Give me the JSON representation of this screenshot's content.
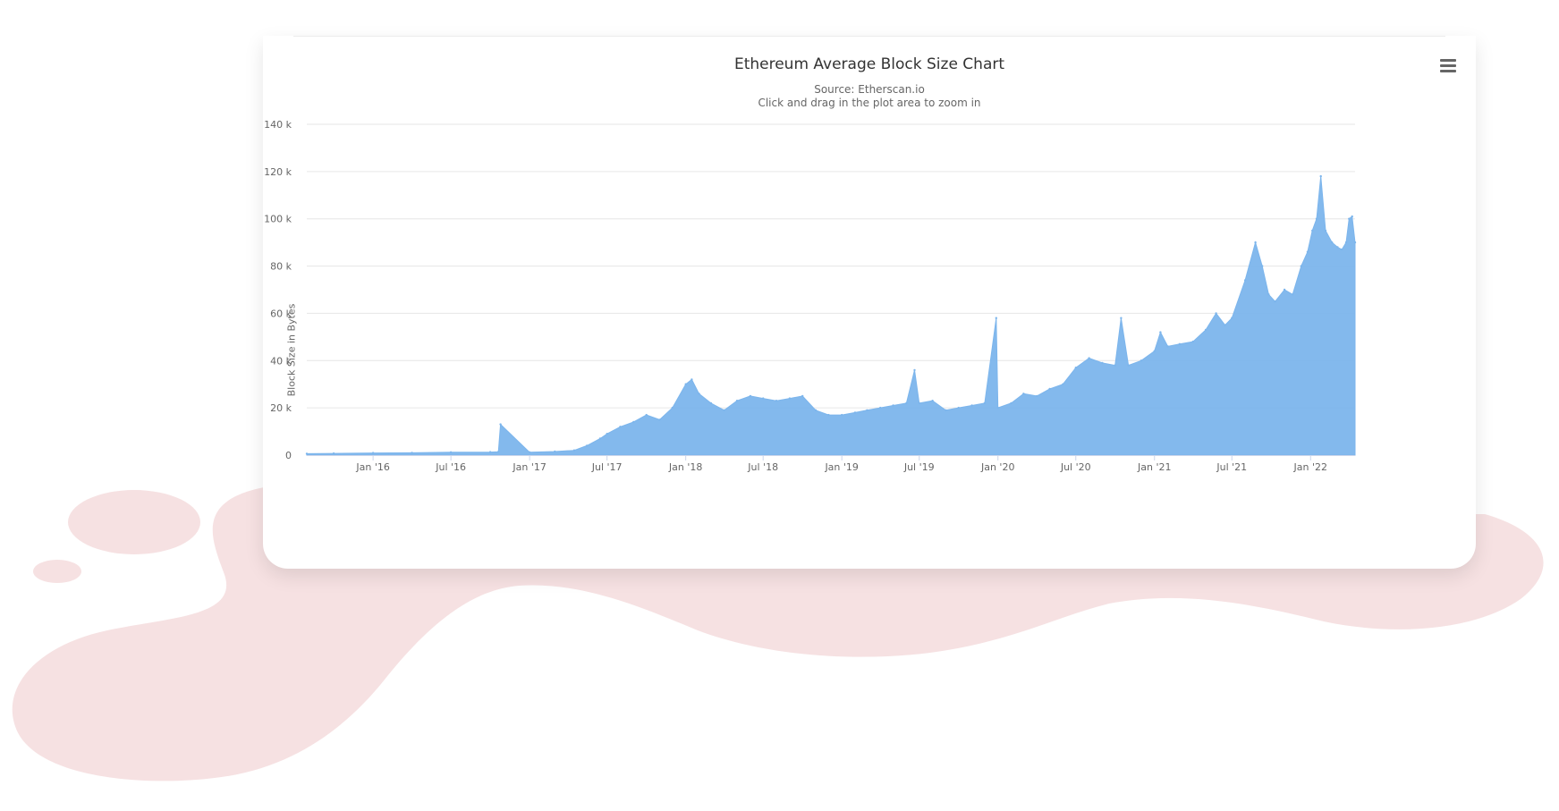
{
  "colors": {
    "background_blob": "#f6e1e2",
    "card": "#ffffff",
    "series": "#7cb5ec",
    "grid": "#e6e6e6",
    "text": "#333333",
    "muted": "#666666"
  },
  "menu": {
    "icon": "hamburger-menu-icon"
  },
  "chart_data": {
    "type": "area",
    "title": "Ethereum Average Block Size Chart",
    "subtitle": "Source: Etherscan.io",
    "subtitle2": "Click and drag in the plot area to zoom in",
    "xlabel": "",
    "ylabel": "Block Size in Bytes",
    "xlim": [
      "2015-07-30",
      "2022-04-15"
    ],
    "ylim": [
      0,
      140000
    ],
    "y_ticks": [
      0,
      20000,
      40000,
      60000,
      80000,
      100000,
      120000,
      140000
    ],
    "y_tick_labels": [
      "0",
      "20 k",
      "40 k",
      "60 k",
      "80 k",
      "100 k",
      "120 k",
      "140 k"
    ],
    "x_ticks": [
      "2016-01-01",
      "2016-07-01",
      "2017-01-01",
      "2017-07-01",
      "2018-01-01",
      "2018-07-01",
      "2019-01-01",
      "2019-07-01",
      "2020-01-01",
      "2020-07-01",
      "2021-01-01",
      "2021-07-01",
      "2022-01-01"
    ],
    "x_tick_labels": [
      "Jan '16",
      "Jul '16",
      "Jan '17",
      "Jul '17",
      "Jan '18",
      "Jul '18",
      "Jan '19",
      "Jul '19",
      "Jan '20",
      "Jul '20",
      "Jan '21",
      "Jul '21",
      "Jan '22"
    ],
    "grid": true,
    "legend": "none",
    "series": [
      {
        "x": [
          "2015-07-30",
          "2015-10-01",
          "2016-01-01",
          "2016-04-01",
          "2016-07-01",
          "2016-10-01",
          "2016-10-20",
          "2016-10-25",
          "2017-01-01",
          "2017-03-01",
          "2017-04-15",
          "2017-05-15",
          "2017-06-15",
          "2017-07-01",
          "2017-08-01",
          "2017-09-01",
          "2017-10-01",
          "2017-11-01",
          "2017-12-01",
          "2018-01-01",
          "2018-01-15",
          "2018-02-01",
          "2018-03-01",
          "2018-04-01",
          "2018-05-01",
          "2018-06-01",
          "2018-07-01",
          "2018-08-01",
          "2018-09-01",
          "2018-10-01",
          "2018-11-01",
          "2018-12-01",
          "2019-01-01",
          "2019-02-01",
          "2019-03-01",
          "2019-04-01",
          "2019-05-01",
          "2019-06-01",
          "2019-06-20",
          "2019-07-01",
          "2019-08-01",
          "2019-09-01",
          "2019-10-01",
          "2019-11-01",
          "2019-12-01",
          "2019-12-28",
          "2020-01-01",
          "2020-02-01",
          "2020-03-01",
          "2020-04-01",
          "2020-05-01",
          "2020-06-01",
          "2020-07-01",
          "2020-08-01",
          "2020-09-01",
          "2020-10-01",
          "2020-10-15",
          "2020-11-01",
          "2020-12-01",
          "2021-01-01",
          "2021-01-15",
          "2021-02-01",
          "2021-03-01",
          "2021-04-01",
          "2021-05-01",
          "2021-05-25",
          "2021-06-15",
          "2021-07-01",
          "2021-08-01",
          "2021-08-25",
          "2021-09-10",
          "2021-09-25",
          "2021-10-10",
          "2021-11-01",
          "2021-11-20",
          "2021-12-10",
          "2021-12-25",
          "2022-01-05",
          "2022-01-15",
          "2022-01-25",
          "2022-02-05",
          "2022-02-20",
          "2022-03-05",
          "2022-03-15",
          "2022-03-25",
          "2022-04-01",
          "2022-04-08",
          "2022-04-15"
        ],
        "values": [
          600,
          700,
          900,
          1000,
          1200,
          1300,
          1400,
          13000,
          1200,
          1500,
          2000,
          4000,
          7000,
          9000,
          12000,
          14000,
          17000,
          15000,
          20000,
          30000,
          32000,
          26000,
          22000,
          19000,
          23000,
          25000,
          24000,
          23000,
          24000,
          25000,
          19000,
          17000,
          17000,
          18000,
          19000,
          20000,
          21000,
          22000,
          36000,
          22000,
          23000,
          19000,
          20000,
          21000,
          22000,
          58000,
          20000,
          22000,
          26000,
          25000,
          28000,
          30000,
          37000,
          41000,
          39000,
          38000,
          58000,
          38000,
          40000,
          44000,
          52000,
          46000,
          47000,
          48000,
          53000,
          60000,
          55000,
          58000,
          74000,
          90000,
          80000,
          68000,
          65000,
          70000,
          68000,
          80000,
          86000,
          95000,
          100000,
          118000,
          95000,
          90000,
          88000,
          87000,
          90000,
          100000,
          101000,
          90000
        ]
      }
    ]
  }
}
